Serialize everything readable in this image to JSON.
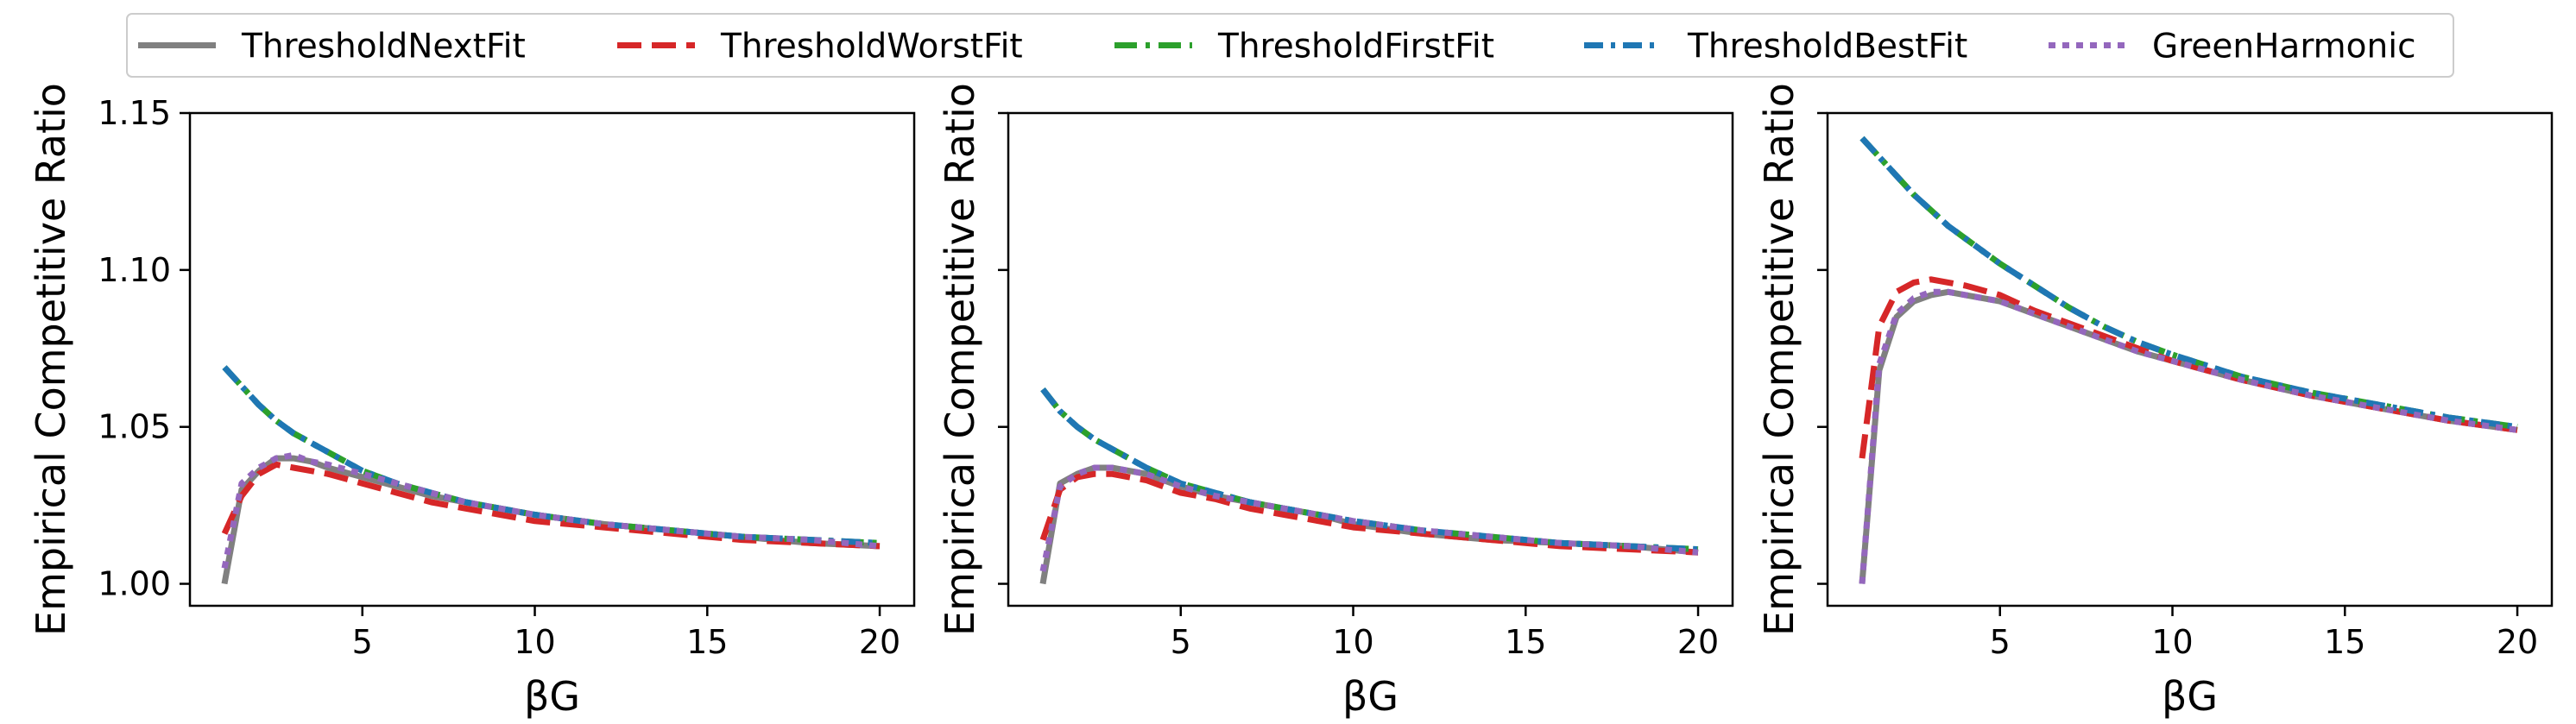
{
  "figure": {
    "legend": [
      {
        "name": "ThresholdNextFit",
        "color": "#808080",
        "dash": "solid"
      },
      {
        "name": "ThresholdWorstFit",
        "color": "#d62728",
        "dash": "dashed"
      },
      {
        "name": "ThresholdFirstFit",
        "color": "#2ca02c",
        "dash": "dashdot"
      },
      {
        "name": "ThresholdBestFit",
        "color": "#1f77b4",
        "dash": "dashdot-fine"
      },
      {
        "name": "GreenHarmonic",
        "color": "#9467bd",
        "dash": "dotted"
      }
    ]
  },
  "chart_data": [
    {
      "type": "line",
      "xlabel": "βG",
      "ylabel": "Empirical Competitive Ratio",
      "xlim": [
        0,
        21
      ],
      "ylim": [
        0.993,
        1.15
      ],
      "xticks": [
        5,
        10,
        15,
        20
      ],
      "yticks": [
        1.0,
        1.05,
        1.1,
        1.15
      ],
      "yticklabels": [
        "1.00",
        "1.05",
        "1.10",
        "1.15"
      ],
      "grid": false,
      "legend_position": "top",
      "series": [
        {
          "name": "ThresholdNextFit",
          "x": [
            1,
            1.5,
            2,
            2.5,
            3,
            3.5,
            4,
            5,
            6,
            7,
            8,
            9,
            10,
            12,
            14,
            16,
            18,
            20
          ],
          "y": [
            1.0,
            1.03,
            1.036,
            1.04,
            1.04,
            1.039,
            1.037,
            1.034,
            1.031,
            1.028,
            1.026,
            1.024,
            1.022,
            1.019,
            1.017,
            1.015,
            1.013,
            1.012
          ]
        },
        {
          "name": "ThresholdWorstFit",
          "x": [
            1,
            1.5,
            2,
            2.5,
            3,
            3.5,
            4,
            5,
            6,
            7,
            8,
            9,
            10,
            12,
            14,
            16,
            18,
            20
          ],
          "y": [
            1.016,
            1.028,
            1.035,
            1.038,
            1.037,
            1.036,
            1.035,
            1.032,
            1.029,
            1.026,
            1.024,
            1.022,
            1.02,
            1.018,
            1.016,
            1.014,
            1.013,
            1.012
          ]
        },
        {
          "name": "ThresholdFirstFit",
          "x": [
            1,
            1.5,
            2,
            2.5,
            3,
            3.5,
            4,
            5,
            6,
            7,
            8,
            9,
            10,
            12,
            14,
            16,
            18,
            20
          ],
          "y": [
            1.069,
            1.063,
            1.057,
            1.052,
            1.048,
            1.045,
            1.042,
            1.036,
            1.032,
            1.029,
            1.026,
            1.024,
            1.022,
            1.019,
            1.017,
            1.015,
            1.014,
            1.013
          ]
        },
        {
          "name": "ThresholdBestFit",
          "x": [
            1,
            1.5,
            2,
            2.5,
            3,
            3.5,
            4,
            5,
            6,
            7,
            8,
            9,
            10,
            12,
            14,
            16,
            18,
            20
          ],
          "y": [
            1.069,
            1.063,
            1.057,
            1.052,
            1.048,
            1.045,
            1.042,
            1.036,
            1.032,
            1.029,
            1.026,
            1.024,
            1.022,
            1.019,
            1.017,
            1.015,
            1.014,
            1.013
          ]
        },
        {
          "name": "GreenHarmonic",
          "x": [
            1,
            1.5,
            2,
            2.5,
            3,
            3.5,
            4,
            5,
            6,
            7,
            8,
            9,
            10,
            12,
            14,
            16,
            18,
            20
          ],
          "y": [
            1.005,
            1.032,
            1.037,
            1.04,
            1.041,
            1.039,
            1.038,
            1.035,
            1.032,
            1.029,
            1.026,
            1.024,
            1.022,
            1.019,
            1.017,
            1.015,
            1.014,
            1.012
          ]
        }
      ]
    },
    {
      "type": "line",
      "xlabel": "βG",
      "ylabel": "Empirical Competitive Ratio",
      "xlim": [
        0,
        21
      ],
      "ylim": [
        0.993,
        1.15
      ],
      "xticks": [
        5,
        10,
        15,
        20
      ],
      "yticks": [
        1.0,
        1.05,
        1.1,
        1.15
      ],
      "yticklabels": [
        "",
        "",
        "",
        ""
      ],
      "grid": false,
      "series": [
        {
          "name": "ThresholdNextFit",
          "x": [
            1,
            1.5,
            2,
            2.5,
            3,
            3.5,
            4,
            5,
            6,
            7,
            8,
            9,
            10,
            12,
            14,
            16,
            18,
            20
          ],
          "y": [
            1.0,
            1.032,
            1.035,
            1.037,
            1.037,
            1.036,
            1.035,
            1.031,
            1.028,
            1.026,
            1.024,
            1.022,
            1.019,
            1.016,
            1.014,
            1.013,
            1.012,
            1.01
          ]
        },
        {
          "name": "ThresholdWorstFit",
          "x": [
            1,
            1.5,
            2,
            2.5,
            3,
            3.5,
            4,
            5,
            6,
            7,
            8,
            9,
            10,
            12,
            14,
            16,
            18,
            20
          ],
          "y": [
            1.014,
            1.03,
            1.034,
            1.035,
            1.035,
            1.034,
            1.033,
            1.029,
            1.027,
            1.024,
            1.022,
            1.02,
            1.018,
            1.016,
            1.014,
            1.012,
            1.011,
            1.01
          ]
        },
        {
          "name": "ThresholdFirstFit",
          "x": [
            1,
            1.5,
            2,
            2.5,
            3,
            3.5,
            4,
            5,
            6,
            7,
            8,
            9,
            10,
            12,
            14,
            16,
            18,
            20
          ],
          "y": [
            1.062,
            1.055,
            1.05,
            1.046,
            1.043,
            1.04,
            1.037,
            1.032,
            1.029,
            1.026,
            1.024,
            1.022,
            1.02,
            1.017,
            1.015,
            1.013,
            1.012,
            1.011
          ]
        },
        {
          "name": "ThresholdBestFit",
          "x": [
            1,
            1.5,
            2,
            2.5,
            3,
            3.5,
            4,
            5,
            6,
            7,
            8,
            9,
            10,
            12,
            14,
            16,
            18,
            20
          ],
          "y": [
            1.062,
            1.055,
            1.05,
            1.046,
            1.043,
            1.04,
            1.037,
            1.032,
            1.029,
            1.026,
            1.024,
            1.022,
            1.02,
            1.017,
            1.015,
            1.013,
            1.012,
            1.011
          ]
        },
        {
          "name": "GreenHarmonic",
          "x": [
            1,
            1.5,
            2,
            2.5,
            3,
            3.5,
            4,
            5,
            6,
            7,
            8,
            9,
            10,
            12,
            14,
            16,
            18,
            20
          ],
          "y": [
            1.004,
            1.031,
            1.035,
            1.037,
            1.037,
            1.036,
            1.035,
            1.031,
            1.028,
            1.026,
            1.024,
            1.022,
            1.02,
            1.017,
            1.015,
            1.013,
            1.012,
            1.01
          ]
        }
      ]
    },
    {
      "type": "line",
      "xlabel": "βG",
      "ylabel": "Empirical Competitive Ratio",
      "xlim": [
        0,
        21
      ],
      "ylim": [
        0.993,
        1.15
      ],
      "xticks": [
        5,
        10,
        15,
        20
      ],
      "yticks": [
        1.0,
        1.05,
        1.1,
        1.15
      ],
      "yticklabels": [
        "",
        "",
        "",
        ""
      ],
      "grid": false,
      "series": [
        {
          "name": "ThresholdNextFit",
          "x": [
            1,
            1.5,
            2,
            2.5,
            3,
            3.5,
            4,
            5,
            6,
            7,
            8,
            9,
            10,
            12,
            14,
            16,
            18,
            20
          ],
          "y": [
            1.0,
            1.068,
            1.085,
            1.09,
            1.092,
            1.093,
            1.092,
            1.09,
            1.086,
            1.082,
            1.078,
            1.074,
            1.071,
            1.065,
            1.06,
            1.056,
            1.052,
            1.049
          ]
        },
        {
          "name": "ThresholdWorstFit",
          "x": [
            1,
            1.5,
            2,
            2.5,
            3,
            3.5,
            4,
            5,
            6,
            7,
            8,
            9,
            10,
            12,
            14,
            16,
            18,
            20
          ],
          "y": [
            1.04,
            1.082,
            1.093,
            1.096,
            1.097,
            1.096,
            1.095,
            1.092,
            1.087,
            1.083,
            1.079,
            1.075,
            1.071,
            1.065,
            1.06,
            1.056,
            1.052,
            1.049
          ]
        },
        {
          "name": "ThresholdFirstFit",
          "x": [
            1,
            1.5,
            2,
            2.5,
            3,
            3.5,
            4,
            5,
            6,
            7,
            8,
            9,
            10,
            12,
            14,
            16,
            18,
            20
          ],
          "y": [
            1.142,
            1.136,
            1.13,
            1.124,
            1.119,
            1.114,
            1.11,
            1.102,
            1.095,
            1.088,
            1.082,
            1.077,
            1.073,
            1.066,
            1.061,
            1.057,
            1.053,
            1.05
          ]
        },
        {
          "name": "ThresholdBestFit",
          "x": [
            1,
            1.5,
            2,
            2.5,
            3,
            3.5,
            4,
            5,
            6,
            7,
            8,
            9,
            10,
            12,
            14,
            16,
            18,
            20
          ],
          "y": [
            1.142,
            1.136,
            1.13,
            1.124,
            1.119,
            1.114,
            1.11,
            1.102,
            1.095,
            1.088,
            1.082,
            1.077,
            1.073,
            1.066,
            1.061,
            1.057,
            1.053,
            1.05
          ]
        },
        {
          "name": "GreenHarmonic",
          "x": [
            1,
            1.5,
            2,
            2.5,
            3,
            3.5,
            4,
            5,
            6,
            7,
            8,
            9,
            10,
            12,
            14,
            16,
            18,
            20
          ],
          "y": [
            1.0,
            1.07,
            1.086,
            1.091,
            1.093,
            1.093,
            1.092,
            1.09,
            1.086,
            1.082,
            1.078,
            1.074,
            1.071,
            1.065,
            1.06,
            1.056,
            1.052,
            1.049
          ]
        }
      ]
    }
  ]
}
